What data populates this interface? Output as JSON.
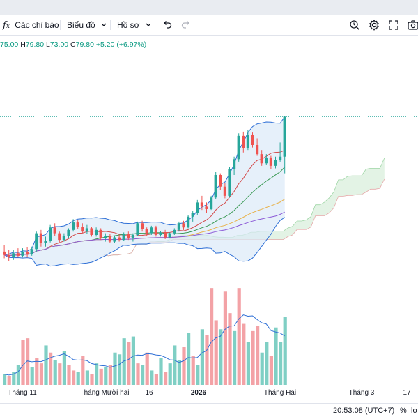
{
  "toolbar": {
    "indicators_icon": "fx-icon",
    "indicators_label": "Các chỉ báo",
    "charts_label": "Biểu đồ",
    "profile_label": "Hồ sơ",
    "undo_icon": "undo-icon",
    "redo_icon": "redo-icon",
    "right_icons": [
      "search-clock-icon",
      "gear-icon",
      "fullscreen-icon",
      "snapshot-icon"
    ]
  },
  "ohlc": {
    "open": "75.00",
    "high_label": "H",
    "high": "79.80",
    "low_label": "L",
    "low": "73.00",
    "close_label": "C",
    "close": "79.80",
    "change": "+5.20 (+6.97%)"
  },
  "bottom": {
    "time": "20:53:08 (UTC+7)",
    "percent": "%",
    "log": "lo"
  },
  "colors": {
    "up": "#26a69a",
    "down": "#ef5350",
    "up_volume": "#7fcfc4",
    "down_volume": "#f3a2a6",
    "bb_line": "#2e6fd6",
    "bb_fill": "#dbe9f8",
    "ma_red": "#d34848",
    "ma_green": "#3b9a55",
    "ma_orange": "#e8b24a",
    "ma_purple": "#8c5ad7",
    "volume_ma": "#2e6fd6",
    "ichimoku_cloud_bull": "#e3f3e5",
    "ichimoku_cloud_bear": "#f9e1e1"
  },
  "chart_data": {
    "type": "candlestick",
    "price_range": [
      60,
      85
    ],
    "last_price": 79.8,
    "x_axis_labels": [
      {
        "label": "Tháng 11",
        "bold": false
      },
      {
        "label": "Tháng Mười hai",
        "bold": false
      },
      {
        "label": "16",
        "bold": false
      },
      {
        "label": "2026",
        "bold": true
      },
      {
        "label": "Tháng Hai",
        "bold": false
      },
      {
        "label": "Tháng 3",
        "bold": false
      },
      {
        "label": "17",
        "bold": false
      }
    ],
    "candles": [
      [
        63.6,
        64.4,
        62.8,
        63.2
      ],
      [
        63.2,
        63.8,
        62.5,
        63.0
      ],
      [
        63.0,
        63.8,
        62.6,
        63.4
      ],
      [
        63.4,
        64.0,
        62.9,
        63.1
      ],
      [
        63.1,
        64.0,
        62.9,
        63.6
      ],
      [
        63.6,
        64.1,
        62.9,
        63.3
      ],
      [
        63.3,
        64.2,
        63.1,
        63.9
      ],
      [
        63.9,
        66.0,
        63.6,
        65.8
      ],
      [
        65.8,
        66.2,
        64.2,
        64.6
      ],
      [
        64.6,
        65.4,
        64.2,
        64.9
      ],
      [
        64.9,
        66.8,
        64.7,
        66.5
      ],
      [
        66.5,
        67.0,
        65.5,
        65.8
      ],
      [
        65.8,
        66.0,
        64.7,
        65.0
      ],
      [
        65.0,
        65.8,
        64.8,
        65.5
      ],
      [
        65.5,
        66.4,
        65.2,
        66.2
      ],
      [
        66.2,
        67.5,
        66.0,
        67.1
      ],
      [
        67.1,
        67.4,
        66.3,
        66.6
      ],
      [
        66.6,
        67.0,
        65.8,
        66.0
      ],
      [
        66.0,
        66.8,
        65.7,
        66.4
      ],
      [
        66.4,
        66.6,
        65.4,
        65.6
      ],
      [
        65.6,
        66.5,
        65.4,
        66.2
      ],
      [
        66.2,
        66.4,
        65.0,
        65.2
      ],
      [
        65.2,
        65.8,
        64.8,
        65.5
      ],
      [
        65.5,
        65.7,
        64.6,
        64.8
      ],
      [
        64.8,
        65.5,
        64.6,
        65.3
      ],
      [
        65.3,
        65.6,
        64.8,
        65.0
      ],
      [
        65.0,
        65.9,
        64.9,
        65.7
      ],
      [
        65.7,
        66.0,
        65.0,
        65.2
      ],
      [
        65.2,
        65.8,
        64.8,
        65.6
      ],
      [
        65.6,
        67.2,
        65.5,
        67.0
      ],
      [
        67.0,
        67.3,
        66.0,
        66.3
      ],
      [
        66.3,
        66.5,
        65.5,
        65.8
      ],
      [
        65.8,
        66.7,
        65.6,
        66.5
      ],
      [
        66.5,
        66.7,
        65.4,
        65.6
      ],
      [
        65.6,
        66.1,
        65.4,
        65.9
      ],
      [
        65.9,
        66.2,
        65.1,
        65.3
      ],
      [
        65.3,
        65.9,
        65.2,
        65.8
      ],
      [
        65.8,
        66.4,
        65.6,
        66.2
      ],
      [
        66.2,
        67.2,
        66.0,
        67.0
      ],
      [
        67.0,
        67.3,
        66.2,
        66.5
      ],
      [
        66.5,
        68.0,
        66.4,
        67.8
      ],
      [
        67.8,
        68.5,
        67.2,
        68.2
      ],
      [
        68.2,
        69.8,
        68.0,
        69.5
      ],
      [
        69.5,
        70.3,
        68.6,
        69.0
      ],
      [
        69.0,
        69.5,
        68.2,
        68.7
      ],
      [
        68.7,
        70.3,
        68.6,
        70.1
      ],
      [
        70.1,
        73.2,
        69.9,
        72.8
      ],
      [
        72.8,
        73.0,
        71.0,
        71.4
      ],
      [
        71.4,
        71.8,
        70.0,
        70.3
      ],
      [
        70.3,
        73.8,
        70.1,
        73.5
      ],
      [
        73.5,
        75.0,
        72.8,
        74.7
      ],
      [
        74.7,
        77.8,
        74.4,
        77.5
      ],
      [
        77.5,
        78.0,
        75.5,
        76.0
      ],
      [
        76.0,
        78.2,
        75.8,
        77.6
      ],
      [
        77.6,
        77.9,
        76.1,
        76.4
      ],
      [
        76.4,
        77.2,
        75.1,
        75.3
      ],
      [
        75.3,
        75.8,
        73.9,
        74.2
      ],
      [
        74.2,
        75.3,
        74.0,
        74.9
      ],
      [
        74.9,
        75.1,
        73.5,
        73.9
      ],
      [
        73.9,
        75.0,
        73.6,
        74.6
      ],
      [
        74.6,
        76.7,
        74.4,
        75.0
      ],
      [
        75.0,
        79.8,
        73.0,
        79.8
      ]
    ],
    "volumes": [
      [
        0.3,
        true
      ],
      [
        0.25,
        false
      ],
      [
        0.35,
        true
      ],
      [
        0.55,
        true
      ],
      [
        1.25,
        false
      ],
      [
        1.3,
        false
      ],
      [
        0.5,
        true
      ],
      [
        0.75,
        false
      ],
      [
        0.6,
        false
      ],
      [
        1.1,
        true
      ],
      [
        0.9,
        false
      ],
      [
        0.7,
        true
      ],
      [
        0.6,
        false
      ],
      [
        0.95,
        true
      ],
      [
        0.55,
        false
      ],
      [
        0.4,
        false
      ],
      [
        0.35,
        true
      ],
      [
        0.8,
        false
      ],
      [
        0.4,
        true
      ],
      [
        0.3,
        false
      ],
      [
        0.6,
        true
      ],
      [
        0.45,
        false
      ],
      [
        0.5,
        true
      ],
      [
        0.55,
        false
      ],
      [
        0.9,
        true
      ],
      [
        0.85,
        true
      ],
      [
        1.3,
        true
      ],
      [
        1.2,
        false
      ],
      [
        1.35,
        true
      ],
      [
        0.6,
        false
      ],
      [
        0.55,
        true
      ],
      [
        0.9,
        false
      ],
      [
        0.4,
        true
      ],
      [
        0.3,
        false
      ],
      [
        0.75,
        true
      ],
      [
        0.35,
        false
      ],
      [
        0.6,
        true
      ],
      [
        1.1,
        true
      ],
      [
        0.7,
        true
      ],
      [
        1.05,
        false
      ],
      [
        1.45,
        true
      ],
      [
        0.8,
        false
      ],
      [
        0.55,
        true
      ],
      [
        1.55,
        true
      ],
      [
        1.4,
        false
      ],
      [
        2.7,
        false
      ],
      [
        1.8,
        false
      ],
      [
        1.55,
        true
      ],
      [
        2.6,
        false
      ],
      [
        2.0,
        false
      ],
      [
        1.5,
        true
      ],
      [
        2.7,
        false
      ],
      [
        1.7,
        false
      ],
      [
        1.2,
        true
      ],
      [
        1.5,
        false
      ],
      [
        1.65,
        false
      ],
      [
        0.9,
        true
      ],
      [
        1.2,
        true
      ],
      [
        0.8,
        false
      ],
      [
        1.6,
        true
      ],
      [
        1.2,
        true
      ],
      [
        1.9,
        true
      ]
    ]
  }
}
